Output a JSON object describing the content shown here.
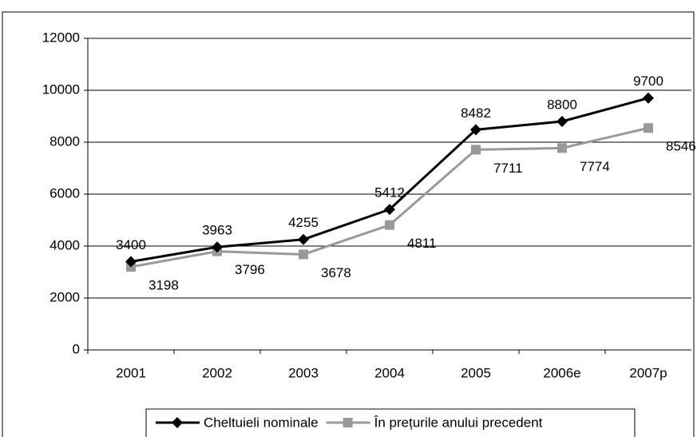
{
  "chart_data": {
    "type": "line",
    "categories": [
      "2001",
      "2002",
      "2003",
      "2004",
      "2005",
      "2006e",
      "2007p"
    ],
    "series": [
      {
        "name": "Cheltuieli nominale",
        "color": "#000000",
        "marker": "diamond",
        "values": [
          3400,
          3963,
          4255,
          5412,
          8482,
          8800,
          9700
        ]
      },
      {
        "name": "În prețurile anului precedent",
        "color": "#999999",
        "marker": "square",
        "values": [
          3198,
          3796,
          3678,
          4811,
          7711,
          7774,
          8546
        ]
      }
    ],
    "ylim": [
      0,
      12000
    ],
    "yticks": [
      0,
      2000,
      4000,
      6000,
      8000,
      10000,
      12000
    ],
    "grid": true,
    "legend": "bottom"
  }
}
